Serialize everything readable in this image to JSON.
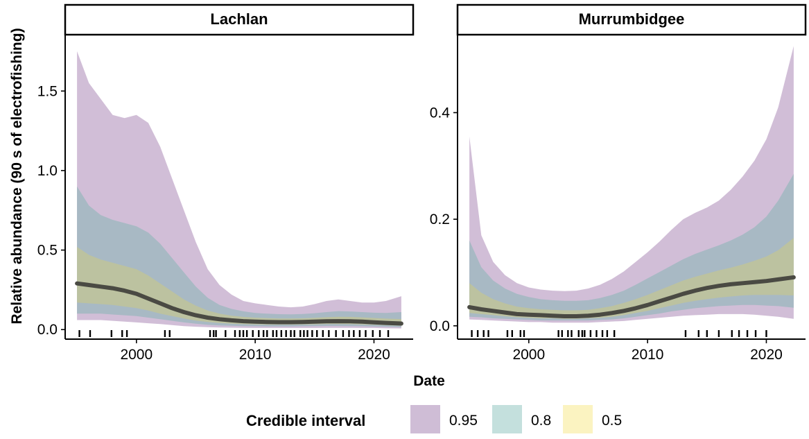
{
  "chart_data": {
    "type": "area",
    "xlabel": "Date",
    "ylabel": "Relative abundance (90 s of electrofishing)",
    "legend": {
      "title": "Credible interval",
      "position": "bottom",
      "entries": [
        {
          "label": "0.95",
          "color": "#cfbdd6"
        },
        {
          "label": "0.8",
          "color": "#c4e0dd"
        },
        {
          "label": "0.5",
          "color": "#fbf3c1"
        }
      ]
    },
    "band_colors": {
      "outer": "#d1bed7",
      "mid": "#a8b9c4",
      "inner": "#bcc2a0",
      "median_line": "#4a4a43"
    },
    "x_ticks": [
      2000,
      2010,
      2020
    ],
    "panels": [
      {
        "title": "Lachlan",
        "xlim": [
          1994.0,
          2023.3
        ],
        "ylim": [
          -0.06,
          1.85
        ],
        "y_ticks": [
          0.0,
          0.5,
          1.0,
          1.5
        ],
        "y_tick_labels": [
          "0.0",
          "0.5",
          "1.0",
          "1.5"
        ],
        "x": [
          1995.0,
          1996.0,
          1997.0,
          1998.0,
          1999.0,
          2000.0,
          2001.0,
          2002.0,
          2003.0,
          2004.0,
          2005.0,
          2006.0,
          2007.0,
          2008.0,
          2009.0,
          2010.0,
          2011.0,
          2012.0,
          2013.0,
          2014.0,
          2015.0,
          2016.0,
          2017.0,
          2018.0,
          2019.0,
          2020.0,
          2021.0,
          2022.3
        ],
        "median": [
          0.29,
          0.28,
          0.27,
          0.26,
          0.245,
          0.225,
          0.195,
          0.165,
          0.135,
          0.11,
          0.09,
          0.075,
          0.065,
          0.058,
          0.053,
          0.05,
          0.048,
          0.047,
          0.047,
          0.048,
          0.05,
          0.052,
          0.053,
          0.052,
          0.05,
          0.046,
          0.042,
          0.038
        ],
        "ci95_low": [
          0.06,
          0.06,
          0.06,
          0.055,
          0.05,
          0.045,
          0.04,
          0.035,
          0.028,
          0.022,
          0.018,
          0.015,
          0.013,
          0.012,
          0.011,
          0.01,
          0.01,
          0.01,
          0.01,
          0.01,
          0.01,
          0.011,
          0.011,
          0.011,
          0.01,
          0.01,
          0.008,
          0.007
        ],
        "ci95_high": [
          1.75,
          1.55,
          1.45,
          1.35,
          1.33,
          1.35,
          1.3,
          1.15,
          0.95,
          0.75,
          0.55,
          0.38,
          0.28,
          0.22,
          0.18,
          0.165,
          0.155,
          0.145,
          0.14,
          0.145,
          0.16,
          0.18,
          0.19,
          0.18,
          0.17,
          0.17,
          0.18,
          0.21
        ],
        "ci80_low": [
          0.1,
          0.1,
          0.1,
          0.095,
          0.09,
          0.085,
          0.075,
          0.065,
          0.055,
          0.045,
          0.037,
          0.03,
          0.026,
          0.024,
          0.022,
          0.021,
          0.02,
          0.02,
          0.02,
          0.021,
          0.022,
          0.023,
          0.023,
          0.022,
          0.021,
          0.019,
          0.017,
          0.015
        ],
        "ci80_high": [
          0.9,
          0.78,
          0.72,
          0.69,
          0.67,
          0.65,
          0.61,
          0.54,
          0.45,
          0.36,
          0.27,
          0.2,
          0.155,
          0.13,
          0.115,
          0.105,
          0.1,
          0.097,
          0.096,
          0.098,
          0.103,
          0.11,
          0.116,
          0.114,
          0.11,
          0.106,
          0.105,
          0.11
        ],
        "ci50_low": [
          0.17,
          0.165,
          0.16,
          0.155,
          0.145,
          0.135,
          0.12,
          0.1,
          0.085,
          0.07,
          0.057,
          0.048,
          0.041,
          0.037,
          0.034,
          0.032,
          0.031,
          0.031,
          0.031,
          0.032,
          0.033,
          0.035,
          0.035,
          0.034,
          0.032,
          0.03,
          0.027,
          0.024
        ],
        "ci50_high": [
          0.52,
          0.47,
          0.44,
          0.42,
          0.4,
          0.38,
          0.34,
          0.29,
          0.24,
          0.19,
          0.15,
          0.12,
          0.1,
          0.088,
          0.08,
          0.075,
          0.072,
          0.07,
          0.07,
          0.071,
          0.074,
          0.078,
          0.081,
          0.08,
          0.077,
          0.073,
          0.069,
          0.066
        ],
        "rug": [
          1995.2,
          1996.1,
          1997.9,
          1998.8,
          1999.2,
          2002.4,
          2002.8,
          2006.2,
          2006.5,
          2006.7,
          2007.5,
          2008.3,
          2008.7,
          2009.0,
          2009.3,
          2009.8,
          2010.3,
          2010.7,
          2011.0,
          2011.5,
          2011.8,
          2012.2,
          2012.6,
          2013.0,
          2013.3,
          2013.8,
          2014.1,
          2014.4,
          2014.8,
          2015.2,
          2015.7,
          2016.2,
          2016.8,
          2017.4,
          2017.9,
          2018.3,
          2018.8,
          2019.3,
          2019.9,
          2020.5,
          2021.2
        ]
      },
      {
        "title": "Murrumbidgee",
        "xlim": [
          1994.0,
          2023.3
        ],
        "ylim": [
          -0.025,
          0.545
        ],
        "y_ticks": [
          0.0,
          0.2,
          0.4
        ],
        "y_tick_labels": [
          "0.0",
          "0.2",
          "0.4"
        ],
        "x": [
          1995.0,
          1996.0,
          1997.0,
          1998.0,
          1999.0,
          2000.0,
          2001.0,
          2002.0,
          2003.0,
          2004.0,
          2005.0,
          2006.0,
          2007.0,
          2008.0,
          2009.0,
          2010.0,
          2011.0,
          2012.0,
          2013.0,
          2014.0,
          2015.0,
          2016.0,
          2017.0,
          2018.0,
          2019.0,
          2020.0,
          2021.0,
          2022.3
        ],
        "median": [
          0.035,
          0.031,
          0.028,
          0.025,
          0.022,
          0.021,
          0.02,
          0.019,
          0.018,
          0.018,
          0.019,
          0.021,
          0.024,
          0.028,
          0.033,
          0.039,
          0.046,
          0.053,
          0.06,
          0.066,
          0.071,
          0.075,
          0.078,
          0.08,
          0.082,
          0.084,
          0.087,
          0.091
        ],
        "ci95_low": [
          0.012,
          0.011,
          0.01,
          0.009,
          0.008,
          0.007,
          0.007,
          0.006,
          0.006,
          0.006,
          0.006,
          0.007,
          0.008,
          0.009,
          0.011,
          0.013,
          0.015,
          0.017,
          0.019,
          0.02,
          0.021,
          0.022,
          0.022,
          0.022,
          0.021,
          0.019,
          0.017,
          0.013
        ],
        "ci95_high": [
          0.355,
          0.17,
          0.12,
          0.095,
          0.08,
          0.072,
          0.068,
          0.066,
          0.065,
          0.066,
          0.07,
          0.077,
          0.088,
          0.102,
          0.12,
          0.138,
          0.158,
          0.18,
          0.2,
          0.212,
          0.222,
          0.235,
          0.255,
          0.28,
          0.31,
          0.35,
          0.41,
          0.525
        ],
        "ci80_low": [
          0.017,
          0.016,
          0.014,
          0.013,
          0.012,
          0.011,
          0.01,
          0.01,
          0.01,
          0.01,
          0.01,
          0.011,
          0.012,
          0.014,
          0.017,
          0.02,
          0.023,
          0.027,
          0.03,
          0.033,
          0.035,
          0.037,
          0.038,
          0.039,
          0.039,
          0.038,
          0.037,
          0.034
        ],
        "ci80_high": [
          0.16,
          0.11,
          0.085,
          0.07,
          0.06,
          0.054,
          0.05,
          0.048,
          0.047,
          0.047,
          0.048,
          0.052,
          0.058,
          0.066,
          0.077,
          0.089,
          0.101,
          0.113,
          0.125,
          0.135,
          0.143,
          0.151,
          0.16,
          0.171,
          0.185,
          0.205,
          0.235,
          0.285
        ],
        "ci50_low": [
          0.024,
          0.022,
          0.02,
          0.018,
          0.016,
          0.015,
          0.014,
          0.014,
          0.013,
          0.013,
          0.014,
          0.015,
          0.017,
          0.02,
          0.024,
          0.028,
          0.033,
          0.038,
          0.043,
          0.047,
          0.05,
          0.053,
          0.055,
          0.057,
          0.058,
          0.058,
          0.058,
          0.057
        ],
        "ci50_high": [
          0.08,
          0.062,
          0.05,
          0.042,
          0.036,
          0.033,
          0.031,
          0.03,
          0.029,
          0.029,
          0.03,
          0.033,
          0.037,
          0.043,
          0.05,
          0.058,
          0.067,
          0.076,
          0.085,
          0.092,
          0.098,
          0.104,
          0.109,
          0.115,
          0.122,
          0.13,
          0.142,
          0.165
        ],
        "rug": [
          1995.2,
          1995.7,
          1996.2,
          1996.6,
          1998.2,
          1998.6,
          1999.3,
          1999.6,
          2002.5,
          2002.8,
          2003.3,
          2003.6,
          2004.2,
          2004.5,
          2004.7,
          2005.2,
          2005.7,
          2006.2,
          2006.6,
          2007.2,
          2013.2,
          2014.3,
          2015.0,
          2016.0,
          2017.1,
          2017.7,
          2018.4,
          2019.1,
          2020.0
        ]
      }
    ]
  }
}
